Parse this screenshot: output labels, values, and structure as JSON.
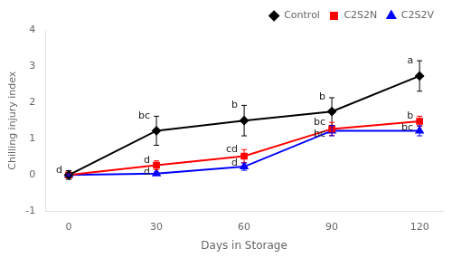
{
  "chart_data": {
    "type": "line",
    "xlabel": "Days in Storage",
    "ylabel": "Chilling injury index",
    "x": [
      0,
      30,
      60,
      90,
      120
    ],
    "series": [
      {
        "name": "Control",
        "color": "#000000",
        "marker": "diamond",
        "line_style": "solid",
        "values": [
          0.0,
          1.22,
          1.5,
          1.75,
          2.73
        ],
        "errors": [
          0.12,
          0.4,
          0.42,
          0.38,
          0.42
        ]
      },
      {
        "name": "C2S2N",
        "color": "#ff0000",
        "marker": "square",
        "line_style": "solid",
        "values": [
          0.0,
          0.27,
          0.52,
          1.27,
          1.48
        ],
        "errors": [
          0.03,
          0.12,
          0.18,
          0.18,
          0.14
        ]
      },
      {
        "name": "C2S2V",
        "color": "#0000ff",
        "marker": "triangle",
        "line_style": "solid",
        "values": [
          0.0,
          0.04,
          0.23,
          1.22,
          1.22
        ],
        "errors": [
          0.03,
          0.04,
          0.1,
          0.14,
          0.14
        ]
      }
    ],
    "xlim": [
      -8,
      128
    ],
    "xticks": [
      0,
      30,
      60,
      90,
      120
    ],
    "ylim": [
      -1,
      4
    ],
    "yticks": [
      -1,
      0,
      1,
      2,
      3,
      4
    ],
    "grid": false,
    "legend": "upper right",
    "annotations": [
      {
        "x": 0,
        "y": 0.13,
        "text": "d"
      },
      {
        "x": 30,
        "y": 1.62,
        "text": "bc"
      },
      {
        "x": 60,
        "y": 1.93,
        "text": "b"
      },
      {
        "x": 90,
        "y": 2.14,
        "text": "b"
      },
      {
        "x": 120,
        "y": 3.16,
        "text": "a"
      },
      {
        "x": 30,
        "y": 0.4,
        "text": "d"
      },
      {
        "x": 60,
        "y": 0.71,
        "text": "cd"
      },
      {
        "x": 90,
        "y": 1.45,
        "text": "bc"
      },
      {
        "x": 120,
        "y": 1.62,
        "text": "b"
      },
      {
        "x": 30,
        "y": 0.08,
        "text": "d"
      },
      {
        "x": 60,
        "y": 0.33,
        "text": "d"
      },
      {
        "x": 90,
        "y": 1.36,
        "text": "bc"
      },
      {
        "x": 120,
        "y": 1.36,
        "text": "bc"
      }
    ]
  }
}
